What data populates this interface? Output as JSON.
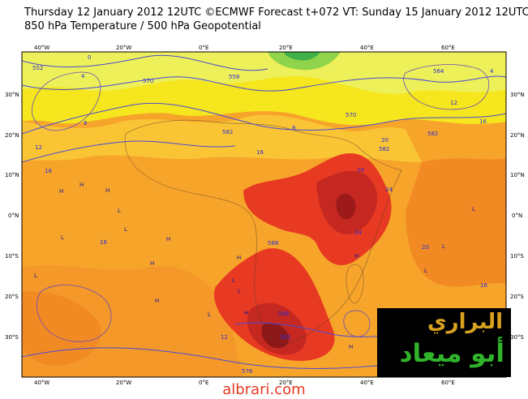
{
  "header": {
    "line1": "Thursday 12 January 2012 12UTC ©ECMWF Forecast t+072 VT: Sunday 15 January 2012 12UTC",
    "line2": "850 hPa Temperature / 500 hPa Geopotential"
  },
  "axes": {
    "top_lon": [
      "40°W",
      "20°W",
      "0°E",
      "20°E",
      "40°E",
      "60°E"
    ],
    "bottom_lon": [
      "40°W",
      "20°W",
      "0°E",
      "20°E",
      "40°E",
      "60°E"
    ],
    "left_lat": [
      "30°N",
      "20°N",
      "10°N",
      "0°N",
      "10°S",
      "20°S",
      "30°S"
    ],
    "right_lat": [
      "30°N",
      "20°N",
      "10°N",
      "0°N",
      "10°S",
      "20°S",
      "30°S"
    ]
  },
  "contours": {
    "geopotential": [
      "552",
      "570",
      "558",
      "582",
      "588",
      "570",
      "564",
      "582",
      "588",
      "582",
      "576",
      "582"
    ],
    "temperature": [
      "0",
      "4",
      "8",
      "12",
      "16",
      "16",
      "20",
      "24",
      "20",
      "24",
      "20",
      "16",
      "12",
      "16",
      "8",
      "4",
      "20",
      "16",
      "12"
    ]
  },
  "pressure_centers": [
    "H",
    "H",
    "H",
    "L",
    "L",
    "L",
    "H",
    "H",
    "L",
    "H",
    "L",
    "H",
    "L",
    "L",
    "H",
    "L",
    "L",
    "H",
    "L",
    "H"
  ],
  "logo": {
    "line1": "البراري",
    "line2": "أبو ميعاد"
  },
  "footer": {
    "url": "albrari.com"
  },
  "colors": {
    "map_yellow": "#f5e61e",
    "map_orange": "#f7a52a",
    "map_deep_orange": "#f07a1c",
    "map_red": "#e83a22",
    "map_dark_red": "#b81e1e",
    "contour_blue": "#4a4ad4"
  }
}
